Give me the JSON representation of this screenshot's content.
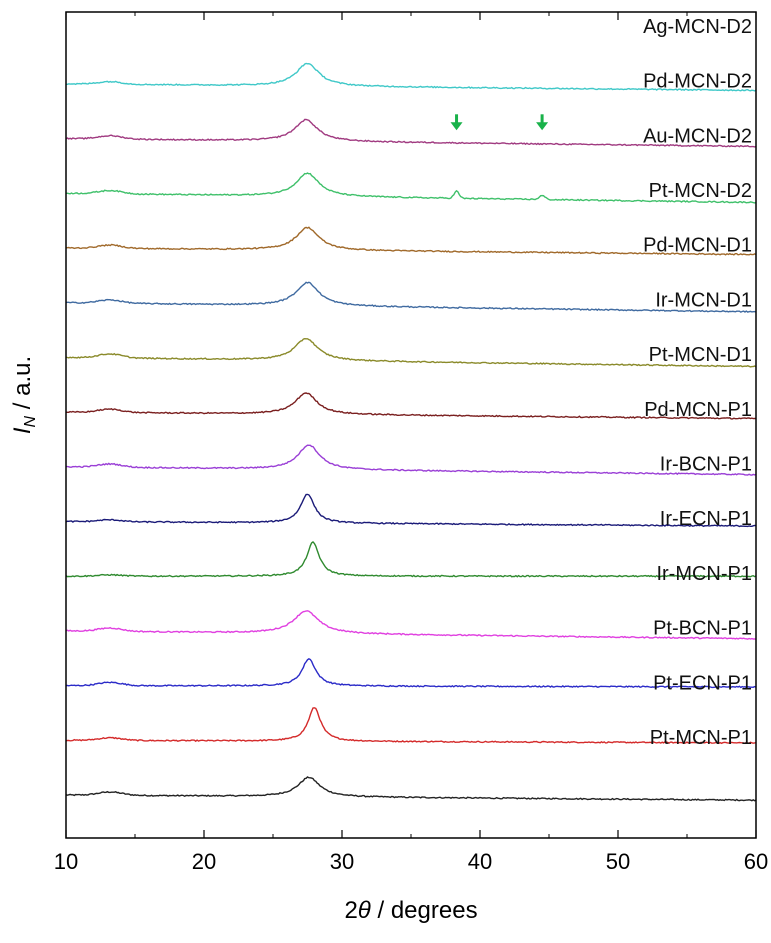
{
  "chart_data": {
    "type": "line",
    "title": "",
    "xlabel": {
      "prefix": "2",
      "symbol": "θ",
      "suffix": " / degrees"
    },
    "ylabel": {
      "symbol": "I",
      "subscript": "N",
      "suffix": " / a.u."
    },
    "xlim": [
      10,
      60
    ],
    "xticks": [
      "10",
      "20",
      "30",
      "40",
      "50",
      "60"
    ],
    "y_ticks_shown": false,
    "grid": false,
    "legend": "none",
    "series_order": "bottom-to-top, vertically offset (stacked)",
    "series": [
      {
        "name": "Pt-MCN-P1",
        "color": "#222222",
        "peak_2theta": 27.6,
        "peak_height": 0.3,
        "peak_width": 0.95,
        "low_angle_hump": 0.05,
        "end_drop": 0.08
      },
      {
        "name": "Pt-ECN-P1",
        "color": "#d42a2a",
        "peak_2theta": 28.0,
        "peak_height": 0.52,
        "peak_width": 0.55,
        "low_angle_hump": 0.04,
        "end_drop": 0.04
      },
      {
        "name": "Pt-BCN-P1",
        "color": "#2b2bc8",
        "peak_2theta": 27.6,
        "peak_height": 0.42,
        "peak_width": 0.6,
        "low_angle_hump": 0.05,
        "end_drop": 0.02
      },
      {
        "name": "Ir-MCN-P1",
        "color": "#e040e0",
        "peak_2theta": 27.4,
        "peak_height": 0.35,
        "peak_width": 1.1,
        "low_angle_hump": 0.05,
        "end_drop": 0.12
      },
      {
        "name": "Ir-ECN-P1",
        "color": "#2f8a2f",
        "peak_2theta": 27.9,
        "peak_height": 0.52,
        "peak_width": 0.55,
        "low_angle_hump": 0.02,
        "end_drop": 0.0
      },
      {
        "name": "Ir-BCN-P1",
        "color": "#1a1a78",
        "peak_2theta": 27.5,
        "peak_height": 0.45,
        "peak_width": 0.6,
        "low_angle_hump": 0.03,
        "end_drop": 0.07
      },
      {
        "name": "Pd-MCN-P1",
        "color": "#9a3fd6",
        "peak_2theta": 27.6,
        "peak_height": 0.38,
        "peak_width": 0.95,
        "low_angle_hump": 0.05,
        "end_drop": 0.12
      },
      {
        "name": "Pt-MCN-D1",
        "color": "#7a1f1f",
        "peak_2theta": 27.4,
        "peak_height": 0.33,
        "peak_width": 0.95,
        "low_angle_hump": 0.05,
        "end_drop": 0.1
      },
      {
        "name": "Ir-MCN-D1",
        "color": "#8a8a2a",
        "peak_2theta": 27.4,
        "peak_height": 0.34,
        "peak_width": 1.0,
        "low_angle_hump": 0.06,
        "end_drop": 0.14
      },
      {
        "name": "Pd-MCN-D1",
        "color": "#3f6aa0",
        "peak_2theta": 27.5,
        "peak_height": 0.36,
        "peak_width": 1.0,
        "low_angle_hump": 0.05,
        "end_drop": 0.14
      },
      {
        "name": "Pt-MCN-D2",
        "color": "#a0692a",
        "peak_2theta": 27.5,
        "peak_height": 0.35,
        "peak_width": 1.0,
        "low_angle_hump": 0.05,
        "end_drop": 0.1
      },
      {
        "name": "Au-MCN-D2",
        "color": "#3fc06a",
        "peak_2theta": 27.5,
        "peak_height": 0.36,
        "peak_width": 1.0,
        "low_angle_hump": 0.05,
        "end_drop": 0.14,
        "extra_peaks": [
          {
            "x": 38.3,
            "h": 0.11,
            "w": 0.25
          },
          {
            "x": 44.5,
            "h": 0.06,
            "w": 0.3
          }
        ]
      },
      {
        "name": "Pd-MCN-D2",
        "color": "#a03a80",
        "peak_2theta": 27.4,
        "peak_height": 0.33,
        "peak_width": 1.0,
        "low_angle_hump": 0.05,
        "end_drop": 0.12
      },
      {
        "name": "Ag-MCN-D2",
        "color": "#3fc8c8",
        "peak_2theta": 27.5,
        "peak_height": 0.35,
        "peak_width": 1.0,
        "low_angle_hump": 0.04,
        "end_drop": 0.1
      }
    ],
    "annotations": [
      {
        "series": "Au-MCN-D2",
        "x": 38.3,
        "marker": "down-arrow",
        "color": "#19b24a"
      },
      {
        "series": "Au-MCN-D2",
        "x": 44.5,
        "marker": "down-arrow",
        "color": "#19b24a"
      }
    ]
  }
}
